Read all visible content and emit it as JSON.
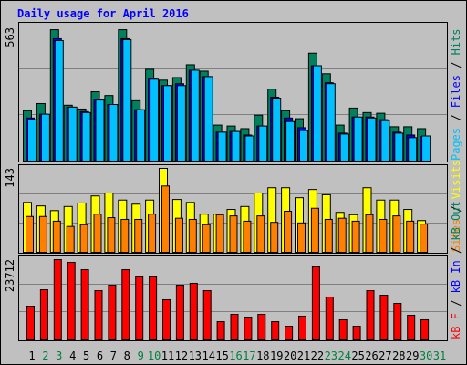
{
  "chart_data": {
    "type": "bar",
    "title": "Daily usage for April 2016",
    "legend_separator": " / ",
    "categories": [
      "1",
      "2",
      "3",
      "4",
      "5",
      "6",
      "7",
      "8",
      "9",
      "10",
      "11",
      "12",
      "13",
      "14",
      "15",
      "16",
      "17",
      "18",
      "19",
      "20",
      "21",
      "22",
      "23",
      "24",
      "25",
      "26",
      "27",
      "28",
      "29",
      "30",
      "31"
    ],
    "category_colors": [
      "#000000",
      "#008040",
      "#008040",
      "#000000",
      "#000000",
      "#000000",
      "#000000",
      "#000000",
      "#008040",
      "#008040",
      "#000000",
      "#000000",
      "#000000",
      "#000000",
      "#000000",
      "#008040",
      "#008040",
      "#000000",
      "#000000",
      "#000000",
      "#000000",
      "#000000",
      "#008040",
      "#008040",
      "#000000",
      "#000000",
      "#000000",
      "#000000",
      "#000000",
      "#008040",
      "#008040"
    ],
    "panels": [
      {
        "ylim": [
          0,
          563
        ],
        "yticks": [
          563
        ],
        "series": [
          {
            "name": "Hits",
            "color": "#00805c",
            "values": [
              213,
              243,
              555,
              236,
              220,
              293,
              277,
              555,
              255,
              388,
              342,
              353,
              407,
              380,
              152,
              148,
              137,
              194,
              304,
              213,
              179,
              456,
              369,
              152,
              224,
              205,
              202,
              145,
              145,
              137,
              null
            ]
          },
          {
            "name": "Files",
            "color": "#0000ff",
            "values": [
              182,
              198,
              517,
              228,
              209,
              262,
              239,
              517,
              217,
              350,
              319,
              327,
              384,
              357,
              122,
              125,
              110,
              148,
              270,
              182,
              141,
              403,
              331,
              118,
              186,
              186,
              175,
              122,
              110,
              103,
              null
            ]
          },
          {
            "name": "Pages",
            "color": "#00c0ff",
            "values": [
              175,
              198,
              509,
              228,
              205,
              258,
              239,
              513,
              217,
              346,
              319,
              319,
              384,
              357,
              122,
              125,
              106,
              148,
              266,
              167,
              129,
              403,
              327,
              114,
              186,
              182,
              171,
              118,
              99,
              106,
              null
            ]
          }
        ]
      },
      {
        "ylim": [
          0,
          143
        ],
        "yticks": [
          143
        ],
        "series": [
          {
            "name": "Visits",
            "color": "#ffff00",
            "values": [
              85,
              79,
              71,
              78,
              84,
              96,
              101,
              89,
              82,
              89,
              143,
              90,
              85,
              65,
              65,
              73,
              78,
              101,
              110,
              110,
              93,
              107,
              98,
              68,
              64,
              110,
              89,
              89,
              73,
              54,
              null
            ]
          },
          {
            "name": "Sites",
            "color": "#ff8000",
            "values": [
              61,
              61,
              53,
              44,
              47,
              65,
              59,
              56,
              56,
              65,
              113,
              58,
              56,
              47,
              64,
              62,
              53,
              62,
              51,
              70,
              50,
              75,
              56,
              58,
              53,
              64,
              56,
              62,
              53,
              48,
              null
            ]
          }
        ]
      },
      {
        "ylim": [
          0,
          23712
        ],
        "yticks": [
          23712
        ],
        "legend_labels": [
          {
            "name": "kB F",
            "color": "#ff0000"
          },
          {
            "name": "kB In",
            "color": "#0000ff"
          },
          {
            "name": "kB Out",
            "color": "#00805c"
          }
        ],
        "series": [
          {
            "name": "kB F",
            "color": "#ff0000",
            "values": [
              9970,
              14820,
              23712,
              22900,
              20750,
              14550,
              16170,
              20750,
              18600,
              18600,
              11860,
              16170,
              16710,
              14550,
              5390,
              7550,
              6740,
              7550,
              5390,
              4040,
              7010,
              21560,
              12670,
              5930,
              4040,
              14550,
              13200,
              10780,
              7280,
              5930,
              null
            ]
          }
        ]
      }
    ]
  }
}
